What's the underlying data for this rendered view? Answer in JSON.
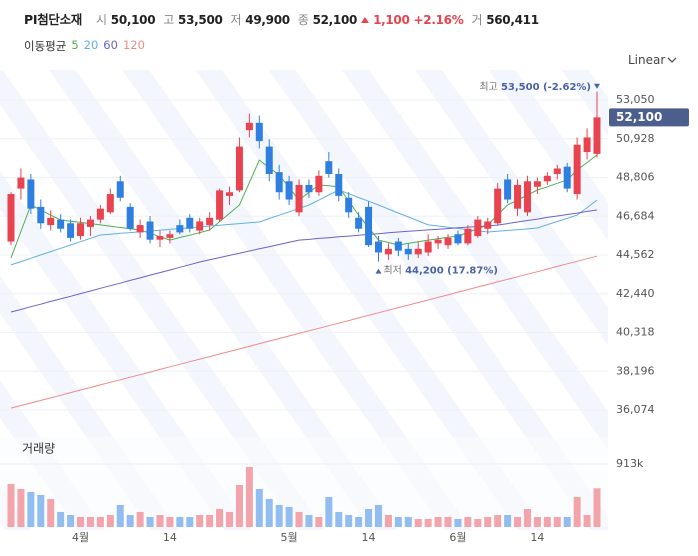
{
  "header": {
    "name": "PI첨단소재",
    "items": [
      {
        "label": "시",
        "value": "50,100"
      },
      {
        "label": "고",
        "value": "53,500"
      },
      {
        "label": "저",
        "value": "49,900"
      },
      {
        "label": "종",
        "value": "52,100"
      }
    ],
    "change": "1,100",
    "change_pct": "+2.16%",
    "volume_label": "거",
    "volume_value": "560,411"
  },
  "chart_data": {
    "type": "candlestick",
    "scale": "Linear",
    "legend_title": "이동평균",
    "volume_title": "거래량",
    "up_color": "#e8434f",
    "down_color": "#2f7fe0",
    "up_volume_color": "#f2a4aa",
    "down_volume_color": "#92bdf0",
    "categories": [
      null,
      null,
      null,
      null,
      null,
      null,
      null,
      "4월",
      null,
      null,
      null,
      null,
      null,
      null,
      null,
      null,
      "14",
      null,
      null,
      null,
      null,
      null,
      null,
      null,
      null,
      null,
      null,
      null,
      "5월",
      null,
      null,
      null,
      null,
      null,
      null,
      null,
      "14",
      null,
      null,
      null,
      null,
      null,
      null,
      null,
      null,
      "6월",
      null,
      null,
      null,
      null,
      null,
      null,
      null,
      "14",
      null,
      null,
      null,
      null,
      null,
      null
    ],
    "open": [
      45300,
      48200,
      48700,
      47200,
      46200,
      46500,
      46300,
      45600,
      46100,
      46500,
      46900,
      48600,
      47200,
      45800,
      46400,
      45400,
      45500,
      46200,
      46600,
      45900,
      46200,
      46500,
      47800,
      48100,
      51400,
      51800,
      50500,
      49100,
      48600,
      46900,
      48400,
      48000,
      49700,
      49000,
      47700,
      46600,
      47200,
      45300,
      44600,
      45300,
      44900,
      44600,
      44700,
      45200,
      45100,
      45700,
      45200,
      45600,
      46000,
      46300,
      48700,
      47100,
      46900,
      48300,
      48600,
      49000,
      49400,
      47900,
      50200,
      50100
    ],
    "high": [
      48000,
      49300,
      49000,
      47600,
      47000,
      46800,
      46500,
      46600,
      46700,
      47300,
      48200,
      48900,
      47400,
      46500,
      46700,
      45900,
      45900,
      46500,
      46800,
      46600,
      46900,
      48200,
      48300,
      51000,
      52300,
      52200,
      50900,
      49500,
      48900,
      48700,
      48700,
      49200,
      50200,
      49300,
      48000,
      46900,
      47500,
      45600,
      45200,
      45500,
      45200,
      45300,
      45700,
      45600,
      45700,
      45900,
      46200,
      46700,
      46600,
      48500,
      49000,
      48700,
      48900,
      48800,
      49100,
      49500,
      49600,
      51000,
      51500,
      53500
    ],
    "low": [
      45100,
      47600,
      46800,
      46000,
      45900,
      45800,
      45300,
      45400,
      45600,
      46300,
      46800,
      47500,
      45900,
      45500,
      45200,
      45000,
      45200,
      45700,
      45800,
      45700,
      45900,
      46400,
      47300,
      48000,
      51000,
      50400,
      48600,
      47600,
      47300,
      46700,
      47700,
      47800,
      48800,
      47500,
      46600,
      45800,
      45000,
      44200,
      44300,
      44500,
      44300,
      44400,
      44500,
      44900,
      44900,
      45100,
      45100,
      45500,
      45700,
      46200,
      47400,
      46700,
      46700,
      47900,
      48400,
      48700,
      48000,
      47600,
      49800,
      49900
    ],
    "close": [
      47900,
      48800,
      47100,
      46300,
      46600,
      46000,
      45500,
      46300,
      46500,
      47100,
      47900,
      47700,
      46000,
      46200,
      45400,
      45600,
      45700,
      45800,
      46000,
      46400,
      46600,
      48100,
      48000,
      50500,
      51800,
      50800,
      49000,
      48000,
      47600,
      48400,
      48000,
      48900,
      49000,
      47800,
      46900,
      46000,
      45100,
      44700,
      44900,
      44800,
      44600,
      44900,
      45300,
      45400,
      45500,
      45200,
      46000,
      46500,
      46400,
      48200,
      47600,
      48400,
      48600,
      48600,
      48900,
      49300,
      48200,
      50600,
      51000,
      52100
    ],
    "volume": [
      624000,
      551000,
      508000,
      464000,
      406000,
      218000,
      174000,
      145000,
      145000,
      145000,
      174000,
      319000,
      174000,
      218000,
      145000,
      174000,
      145000,
      145000,
      145000,
      174000,
      174000,
      261000,
      218000,
      609000,
      870000,
      551000,
      406000,
      319000,
      290000,
      218000,
      174000,
      145000,
      435000,
      218000,
      174000,
      145000,
      261000,
      319000,
      174000,
      145000,
      145000,
      116000,
      116000,
      145000,
      145000,
      116000,
      145000,
      116000,
      145000,
      174000,
      174000,
      145000,
      261000,
      145000,
      145000,
      145000,
      145000,
      435000,
      174000,
      560411
    ],
    "series": [
      {
        "name": "5",
        "color": "#4cb050",
        "values": [
          44400,
          45850,
          47300,
          47030,
          46750,
          46480,
          46410,
          46350,
          46280,
          46210,
          46140,
          46070,
          46000,
          45930,
          45750,
          45560,
          45380,
          45520,
          45650,
          45790,
          45930,
          46390,
          46840,
          47300,
          48530,
          49760,
          49350,
          48940,
          48260,
          47570,
          47990,
          48400,
          48350,
          48290,
          47520,
          46750,
          46070,
          45380,
          45250,
          45110,
          45200,
          45290,
          45380,
          45450,
          45530,
          45600,
          45800,
          46010,
          46210,
          46760,
          47300,
          47570,
          47850,
          48120,
          48300,
          48490,
          48670,
          49220,
          49630,
          50040
        ]
      },
      {
        "name": "20",
        "color": "#5fb0e6",
        "values": [
          44020,
          44200,
          44380,
          44570,
          44750,
          44930,
          45110,
          45290,
          45480,
          45660,
          45700,
          45750,
          45790,
          45840,
          45880,
          45920,
          45970,
          46010,
          46060,
          46100,
          46150,
          46190,
          46240,
          46280,
          46330,
          46370,
          46560,
          46740,
          46930,
          47110,
          47300,
          47570,
          47850,
          48120,
          47920,
          47710,
          47510,
          47300,
          47080,
          46860,
          46650,
          46430,
          46210,
          46150,
          46080,
          46020,
          45950,
          45890,
          45820,
          45860,
          45910,
          45950,
          45990,
          46040,
          46220,
          46400,
          46570,
          46750,
          47160,
          47570
        ]
      },
      {
        "name": "60",
        "color": "#6b63c9",
        "values": [
          41440,
          41580,
          41730,
          41870,
          42020,
          42160,
          42300,
          42450,
          42590,
          42740,
          42880,
          43020,
          43170,
          43310,
          43460,
          43600,
          43740,
          43890,
          44030,
          44180,
          44300,
          44420,
          44540,
          44660,
          44780,
          44900,
          45020,
          45140,
          45260,
          45380,
          45420,
          45470,
          45510,
          45560,
          45600,
          45640,
          45690,
          45730,
          45780,
          45820,
          45860,
          45900,
          45940,
          45970,
          46010,
          46050,
          46090,
          46120,
          46160,
          46200,
          46280,
          46370,
          46450,
          46530,
          46620,
          46700,
          46780,
          46860,
          46950,
          47030
        ]
      },
      {
        "name": "120",
        "color": "#f08a8a",
        "values": [
          36180,
          36320,
          36460,
          36600,
          36740,
          36880,
          37030,
          37170,
          37310,
          37450,
          37590,
          37730,
          37870,
          38010,
          38150,
          38300,
          38440,
          38580,
          38720,
          38860,
          39000,
          39140,
          39280,
          39420,
          39560,
          39710,
          39850,
          39990,
          40130,
          40270,
          40410,
          40550,
          40690,
          40830,
          40970,
          41120,
          41260,
          41400,
          41540,
          41680,
          41820,
          41960,
          42100,
          42240,
          42380,
          42530,
          42670,
          42810,
          42950,
          43090,
          43230,
          43370,
          43510,
          43650,
          43790,
          43940,
          44080,
          44220,
          44360,
          44500
        ]
      }
    ],
    "ylim": [
      34980,
      54420
    ],
    "yticks": [
      {
        "value": 53050,
        "label": "53,050"
      },
      {
        "value": 50928,
        "label": "50,928"
      },
      {
        "value": 48806,
        "label": "48,806"
      },
      {
        "value": 46684,
        "label": "46,684"
      },
      {
        "value": 44562,
        "label": "44,562"
      },
      {
        "value": 42440,
        "label": "42,440"
      },
      {
        "value": 40318,
        "label": "40,318"
      },
      {
        "value": 38196,
        "label": "38,196"
      },
      {
        "value": 36074,
        "label": "36,074"
      }
    ],
    "volume_ylim": [
      0,
      1260000
    ],
    "volume_yticks": [
      {
        "value": 913000,
        "label": "913k"
      }
    ],
    "last_price_label": "52,100",
    "annotations": [
      {
        "label": "최고",
        "text": "53,500 (-2.62%)"
      },
      {
        "label": "최저",
        "text": "44,200 (17.87%)"
      }
    ]
  }
}
